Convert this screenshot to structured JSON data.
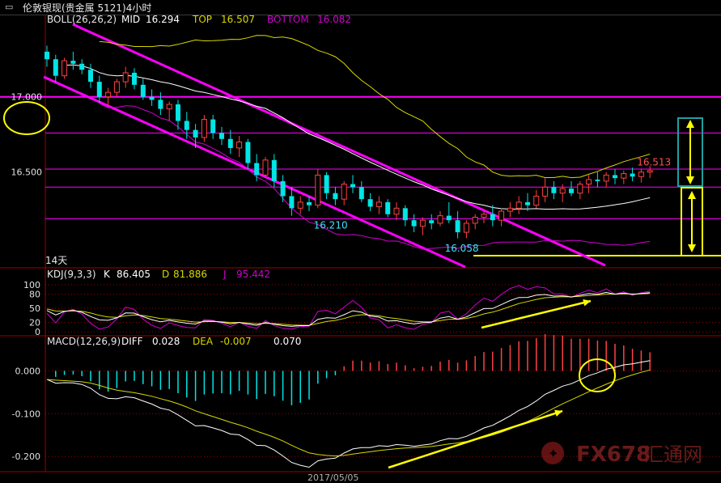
{
  "window": {
    "title": "伦敦银现(贵金属 5121)4小时"
  },
  "colors": {
    "bull": "#ff4040",
    "bear": "#00e5e5",
    "mid": "#ffffff",
    "top": "#d8d800",
    "bottom": "#d000d0",
    "channel": "#ff00ff",
    "marker": "#ffff00",
    "grid": "#a00000"
  },
  "chart_data": [
    {
      "type": "candlestick",
      "panel": "price",
      "indicator": {
        "name": "BOLL(26,26,2)",
        "mid_label": "MID",
        "mid": "16.294",
        "top_label": "TOP",
        "top": "16.507",
        "bottom_label": "BOTTOM",
        "bottom": "16.082"
      },
      "ylim": [
        15.88,
        17.45
      ],
      "yticks": [
        {
          "value": 17.0,
          "label": "17.000"
        },
        {
          "value": 16.5,
          "label": "16.500"
        }
      ],
      "period_label": "14天",
      "xtick_label": "2017/05/05",
      "annotations": [
        {
          "text": "16.513",
          "x": 69,
          "y": 16.513
        },
        {
          "text": "16.210",
          "x": 32,
          "y": 16.21
        },
        {
          "text": "16.058",
          "x": 47,
          "y": 16.058
        }
      ],
      "series": [
        {
          "name": "OHLC",
          "values": [
            [
              17.3,
              17.34,
              17.2,
              17.25
            ],
            [
              17.25,
              17.28,
              17.1,
              17.14
            ],
            [
              17.14,
              17.26,
              17.12,
              17.24
            ],
            [
              17.24,
              17.3,
              17.18,
              17.22
            ],
            [
              17.22,
              17.25,
              17.15,
              17.18
            ],
            [
              17.18,
              17.22,
              17.06,
              17.1
            ],
            [
              17.1,
              17.14,
              16.96,
              17.0
            ],
            [
              17.0,
              17.06,
              16.94,
              17.03
            ],
            [
              17.03,
              17.12,
              17.0,
              17.1
            ],
            [
              17.1,
              17.2,
              17.06,
              17.16
            ],
            [
              17.16,
              17.19,
              17.05,
              17.08
            ],
            [
              17.08,
              17.12,
              16.98,
              17.0
            ],
            [
              17.0,
              17.05,
              16.94,
              16.98
            ],
            [
              16.98,
              17.03,
              16.88,
              16.92
            ],
            [
              16.92,
              16.97,
              16.84,
              16.95
            ],
            [
              16.95,
              16.98,
              16.78,
              16.84
            ],
            [
              16.84,
              16.9,
              16.72,
              16.78
            ],
            [
              16.78,
              16.82,
              16.66,
              16.73
            ],
            [
              16.73,
              16.88,
              16.7,
              16.85
            ],
            [
              16.85,
              16.88,
              16.72,
              16.76
            ],
            [
              16.76,
              16.8,
              16.68,
              16.72
            ],
            [
              16.72,
              16.78,
              16.62,
              16.66
            ],
            [
              16.66,
              16.74,
              16.6,
              16.7
            ],
            [
              16.7,
              16.72,
              16.52,
              16.56
            ],
            [
              16.56,
              16.62,
              16.44,
              16.48
            ],
            [
              16.48,
              16.6,
              16.46,
              16.58
            ],
            [
              16.58,
              16.62,
              16.4,
              16.44
            ],
            [
              16.44,
              16.48,
              16.3,
              16.34
            ],
            [
              16.34,
              16.4,
              16.21,
              16.26
            ],
            [
              16.26,
              16.34,
              16.22,
              16.3
            ],
            [
              16.3,
              16.34,
              16.24,
              16.28
            ],
            [
              16.28,
              16.52,
              16.26,
              16.48
            ],
            [
              16.48,
              16.5,
              16.32,
              16.36
            ],
            [
              16.36,
              16.4,
              16.28,
              16.32
            ],
            [
              16.32,
              16.44,
              16.28,
              16.42
            ],
            [
              16.42,
              16.48,
              16.36,
              16.4
            ],
            [
              16.4,
              16.44,
              16.3,
              16.32
            ],
            [
              16.32,
              16.36,
              16.24,
              16.27
            ],
            [
              16.27,
              16.34,
              16.22,
              16.3
            ],
            [
              16.3,
              16.32,
              16.2,
              16.22
            ],
            [
              16.22,
              16.3,
              16.18,
              16.26
            ],
            [
              16.26,
              16.28,
              16.14,
              16.18
            ],
            [
              16.18,
              16.22,
              16.1,
              16.14
            ],
            [
              16.14,
              16.2,
              16.08,
              16.18
            ],
            [
              16.18,
              16.22,
              16.12,
              16.16
            ],
            [
              16.16,
              16.24,
              16.14,
              16.21
            ],
            [
              16.21,
              16.3,
              16.16,
              16.18
            ],
            [
              16.18,
              16.24,
              16.06,
              16.1
            ],
            [
              16.1,
              16.18,
              16.06,
              16.16
            ],
            [
              16.16,
              16.22,
              16.12,
              16.2
            ],
            [
              16.2,
              16.24,
              16.16,
              16.22
            ],
            [
              16.22,
              16.28,
              16.14,
              16.18
            ],
            [
              16.18,
              16.26,
              16.14,
              16.24
            ],
            [
              16.24,
              16.3,
              16.2,
              16.26
            ],
            [
              16.26,
              16.34,
              16.22,
              16.3
            ],
            [
              16.3,
              16.36,
              16.24,
              16.28
            ],
            [
              16.28,
              16.38,
              16.26,
              16.34
            ],
            [
              16.34,
              16.46,
              16.3,
              16.4
            ],
            [
              16.4,
              16.44,
              16.32,
              16.36
            ],
            [
              16.36,
              16.42,
              16.3,
              16.39
            ],
            [
              16.39,
              16.44,
              16.34,
              16.36
            ],
            [
              16.36,
              16.44,
              16.32,
              16.42
            ],
            [
              16.42,
              16.48,
              16.36,
              16.45
            ],
            [
              16.45,
              16.5,
              16.4,
              16.44
            ],
            [
              16.44,
              16.5,
              16.4,
              16.48
            ],
            [
              16.48,
              16.52,
              16.42,
              16.46
            ],
            [
              16.46,
              16.51,
              16.42,
              16.49
            ],
            [
              16.49,
              16.53,
              16.44,
              16.47
            ],
            [
              16.47,
              16.52,
              16.43,
              16.5
            ],
            [
              16.5,
              16.54,
              16.46,
              16.51
            ]
          ]
        }
      ]
    },
    {
      "type": "line",
      "panel": "kdj",
      "indicator": {
        "name": "KDJ(9,3,3)",
        "k_label": "K",
        "k": "86.405",
        "d_label": "D",
        "d": "81.886",
        "j_label": "J",
        "j": "95.442"
      },
      "ylim": [
        0,
        100
      ],
      "yticks": [
        {
          "value": 100,
          "label": "100"
        },
        {
          "value": 80,
          "label": "80"
        },
        {
          "value": 50,
          "label": "50"
        },
        {
          "value": 20,
          "label": "20"
        },
        {
          "value": 0,
          "label": "0"
        }
      ]
    },
    {
      "type": "bar",
      "panel": "macd",
      "indicator": {
        "name": "MACD(12,26,9)",
        "diff_label": "DIFF",
        "diff": "0.028",
        "dea_label": "DEA",
        "dea": "-0.007",
        "macd": "0.070"
      },
      "ylim": [
        -0.23,
        0.05
      ],
      "yticks": [
        {
          "value": 0.0,
          "label": "0.000"
        },
        {
          "value": -0.1,
          "label": "-0.100"
        },
        {
          "value": -0.2,
          "label": "-0.200"
        }
      ]
    }
  ],
  "watermark": {
    "brand": "FX678",
    "cn": "汇通网"
  }
}
